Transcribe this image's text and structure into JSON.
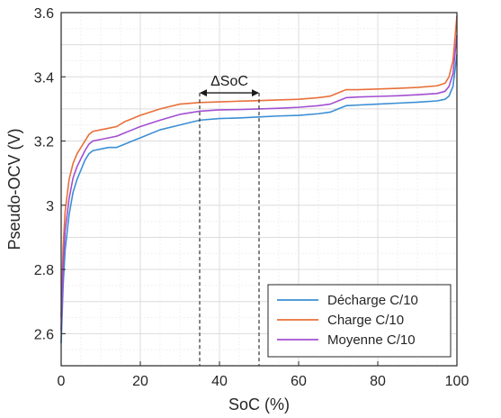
{
  "chart_data": {
    "type": "line",
    "title": "",
    "xlabel": "SoC (%)",
    "ylabel": "Pseudo-OCV (V)",
    "xlim": [
      0,
      100
    ],
    "ylim": [
      2.5,
      3.6
    ],
    "xticks": [
      0,
      20,
      40,
      60,
      80,
      100
    ],
    "yticks": [
      2.6,
      2.8,
      3,
      3.2,
      3.4,
      3.6
    ],
    "x_tick_labels": [
      "0",
      "20",
      "40",
      "60",
      "80",
      "100"
    ],
    "y_tick_labels": [
      "2.6",
      "2.8",
      "3",
      "3.2",
      "3.4",
      "3.6"
    ],
    "grid": true,
    "minor_grid": true,
    "legend_position": "bottom-right",
    "series": [
      {
        "name": "Décharge C/10",
        "color": "#3b8fd4",
        "x": [
          0,
          0.5,
          1,
          2,
          3,
          4,
          5,
          6,
          7,
          8,
          10,
          12,
          14,
          16,
          18,
          20,
          25,
          30,
          35,
          40,
          45,
          50,
          55,
          60,
          65,
          68,
          70,
          72,
          75,
          80,
          85,
          90,
          95,
          97,
          98,
          99,
          99.5,
          100
        ],
        "y": [
          2.57,
          2.75,
          2.86,
          2.97,
          3.04,
          3.08,
          3.11,
          3.14,
          3.16,
          3.17,
          3.175,
          3.18,
          3.18,
          3.19,
          3.2,
          3.21,
          3.235,
          3.25,
          3.265,
          3.27,
          3.272,
          3.275,
          3.278,
          3.28,
          3.285,
          3.29,
          3.3,
          3.31,
          3.312,
          3.315,
          3.318,
          3.321,
          3.325,
          3.33,
          3.34,
          3.37,
          3.42,
          3.47
        ]
      },
      {
        "name": "Charge C/10",
        "color": "#e8703a",
        "x": [
          0,
          0.5,
          1,
          2,
          3,
          4,
          5,
          6,
          7,
          8,
          10,
          12,
          14,
          16,
          18,
          20,
          25,
          30,
          35,
          40,
          45,
          50,
          55,
          60,
          65,
          68,
          70,
          72,
          75,
          80,
          85,
          90,
          95,
          97,
          98,
          99,
          99.5,
          100
        ],
        "y": [
          2.65,
          2.87,
          2.98,
          3.08,
          3.13,
          3.16,
          3.18,
          3.2,
          3.22,
          3.23,
          3.235,
          3.24,
          3.245,
          3.26,
          3.27,
          3.28,
          3.3,
          3.315,
          3.32,
          3.322,
          3.324,
          3.326,
          3.328,
          3.33,
          3.335,
          3.34,
          3.35,
          3.36,
          3.36,
          3.362,
          3.364,
          3.367,
          3.372,
          3.38,
          3.4,
          3.45,
          3.52,
          3.59
        ]
      },
      {
        "name": "Moyenne C/10",
        "color": "#a24fd1",
        "x": [
          0,
          0.5,
          1,
          2,
          3,
          4,
          5,
          6,
          7,
          8,
          10,
          12,
          14,
          16,
          18,
          20,
          25,
          30,
          35,
          40,
          45,
          50,
          55,
          60,
          65,
          68,
          70,
          72,
          75,
          80,
          85,
          90,
          95,
          97,
          98,
          99,
          99.5,
          100
        ],
        "y": [
          2.61,
          2.81,
          2.92,
          3.02,
          3.085,
          3.12,
          3.145,
          3.17,
          3.19,
          3.2,
          3.205,
          3.21,
          3.215,
          3.225,
          3.235,
          3.245,
          3.265,
          3.283,
          3.293,
          3.297,
          3.298,
          3.3,
          3.302,
          3.305,
          3.31,
          3.315,
          3.325,
          3.335,
          3.337,
          3.339,
          3.341,
          3.344,
          3.348,
          3.355,
          3.37,
          3.41,
          3.47,
          3.53
        ]
      }
    ],
    "annotations": [
      {
        "text": "ΔSoC",
        "x_start": 35,
        "x_end": 50,
        "y": 3.35
      }
    ]
  }
}
